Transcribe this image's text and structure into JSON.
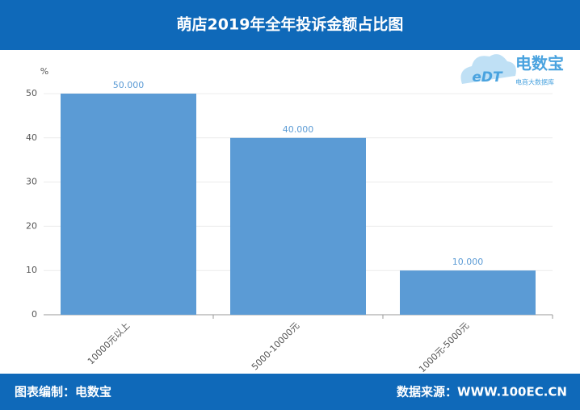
{
  "header": {
    "title": "萌店2019年全年投诉金额占比图"
  },
  "logo": {
    "mark": "eDT",
    "name": "电数宝",
    "tagline": "电商大数据库"
  },
  "chart_data": {
    "type": "bar",
    "y_unit": "%",
    "categories": [
      "10000元以上",
      "5000-10000元",
      "1000元-5000元"
    ],
    "values": [
      50,
      40,
      10
    ],
    "value_labels": [
      "50.000",
      "40.000",
      "10.000"
    ],
    "color": "#5b9bd5",
    "ylim": [
      0,
      50
    ],
    "yticks": [
      0,
      10,
      20,
      30,
      40,
      50
    ],
    "grid": true
  },
  "footer": {
    "left": "图表编制：电数宝",
    "right": "数据来源：WWW.100EC.CN"
  }
}
